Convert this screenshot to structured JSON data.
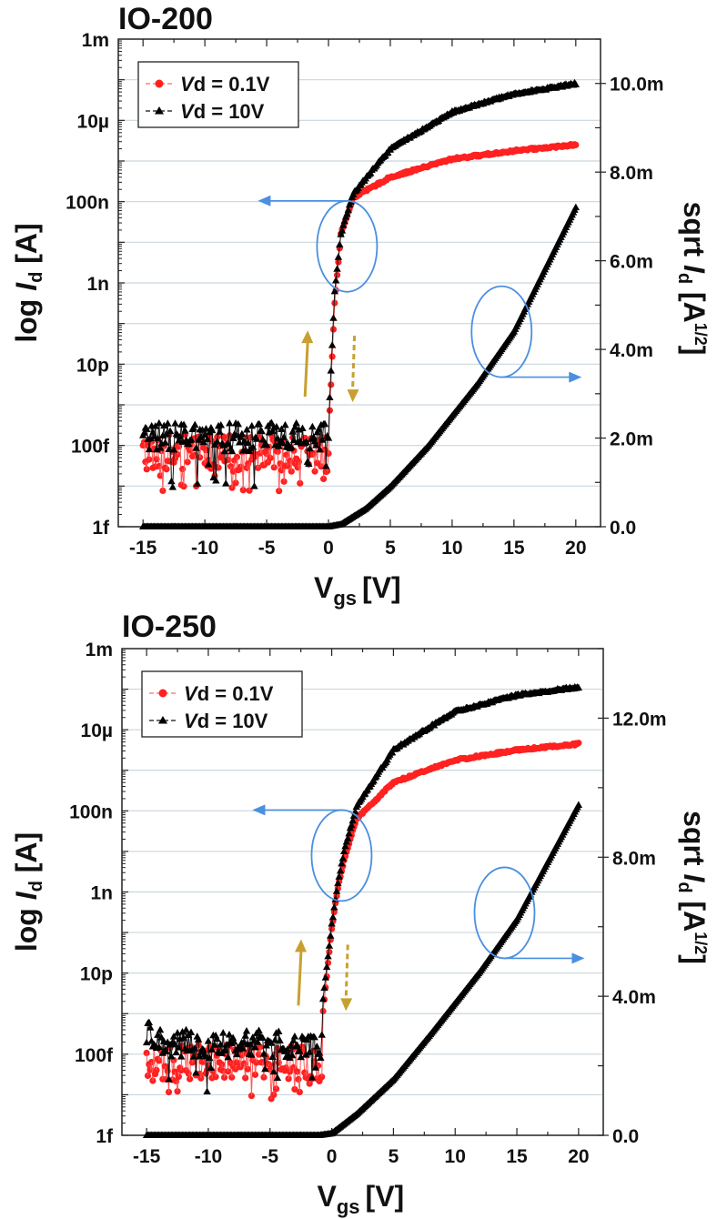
{
  "chart_data": [
    {
      "type": "scatter",
      "title": "IO-200",
      "xlabel": "V",
      "xlabel_sub": "gs",
      "xlabel_unit": "[V]",
      "ylabel_left": "log I_d [A]",
      "ylabel_left_parts": {
        "prefix": "log ",
        "italic": "I",
        "sub": "d",
        "suffix": " [A]"
      },
      "ylabel_right": "sqrt I_d [A^1/2]",
      "ylabel_right_parts": {
        "prefix": "sqrt ",
        "italic": "I",
        "sub": "d",
        "suffix": " [A",
        "sup": "1/2",
        "end": "]"
      },
      "xlim": [
        -17,
        22
      ],
      "xticks": [
        -15,
        -10,
        -5,
        0,
        5,
        10,
        15,
        20
      ],
      "xtick_labels": [
        "-15",
        "-10",
        "-5",
        "0",
        "5",
        "10",
        "15",
        "20"
      ],
      "ylim_left_log10": [
        -15,
        -3
      ],
      "yticks_left": [
        -3,
        -5,
        -7,
        -9,
        -11,
        -13,
        -15
      ],
      "ytick_labels_left": [
        "1m",
        "10µ",
        "100n",
        "1n",
        "10p",
        "100f",
        "1f"
      ],
      "ylim_right": [
        0,
        0.011
      ],
      "yticks_right": [
        0,
        0.002,
        0.004,
        0.006,
        0.008,
        0.01
      ],
      "ytick_labels_right": [
        "0.0",
        "2.0m",
        "4.0m",
        "6.0m",
        "8.0m",
        "10.0m"
      ],
      "grid": true,
      "legend_position": "top-left",
      "legend": [
        {
          "label_italic": "V",
          "label": "d = 0.1V",
          "color": "#ff2020",
          "marker": "circle"
        },
        {
          "label_italic": "V",
          "label": "d = 10V",
          "color": "#000000",
          "marker": "triangle"
        }
      ],
      "params": {
        "von": 0.3,
        "noise_vd01_log10": -13.1,
        "noise_vd10_log10": -12.8,
        "ion_vd01_log10": -5.8,
        "ion_vd10_log10": -4.35,
        "sqrt_end": 0.0072
      },
      "series": [
        {
          "name": "Vd = 0.1V (log Id)",
          "axis": "left",
          "color": "#ff2020",
          "description": "Off-current noise ~50f-200f for Vgs -15..0 V, steep rise at ~0.3 V, ~3e-7 A at 5 V, ~7e-6 A at 20 V",
          "x": [
            -15,
            -10,
            -5,
            0,
            0.5,
            1,
            2,
            5,
            10,
            15,
            20
          ],
          "log10_y": [
            -13.0,
            -13.1,
            -13.1,
            -12.8,
            -9.5,
            -7.8,
            -6.9,
            -6.4,
            -5.95,
            -5.75,
            -5.6
          ]
        },
        {
          "name": "Vd = 10V (log Id)",
          "axis": "left",
          "color": "#000000",
          "description": "Off-current noise ~100f-400f, steep rise at ~0.3 V, ~3e-6 A at 5 V, ~1.5e-4 A at 20 V",
          "x": [
            -15,
            -10,
            -5,
            0,
            0.5,
            1,
            2,
            5,
            10,
            15,
            20
          ],
          "log10_y": [
            -12.4,
            -12.7,
            -12.7,
            -12.5,
            -9.2,
            -7.8,
            -6.8,
            -5.7,
            -4.8,
            -4.35,
            -4.1
          ]
        },
        {
          "name": "Vd = 10V (sqrt Id)",
          "axis": "right",
          "color": "#000000",
          "x": [
            -15,
            -5,
            0,
            1,
            3,
            5,
            8,
            10,
            12,
            15,
            20
          ],
          "y": [
            0,
            0,
            0,
            5e-05,
            0.0004,
            0.0009,
            0.0018,
            0.0025,
            0.0032,
            0.0044,
            0.0072
          ]
        }
      ],
      "annotations": [
        {
          "type": "ellipse",
          "around_x": 1.5,
          "around_log10_y": -8.1,
          "arrow": "left",
          "color": "#4a8fe0",
          "meaning": "log-scale curves read on left axis"
        },
        {
          "type": "ellipse",
          "around_x": 14,
          "around_y": 0.0044,
          "arrow": "right",
          "color": "#4a8fe0",
          "meaning": "sqrt curve read on right axis"
        },
        {
          "type": "arrow",
          "direction": "up",
          "style": "solid",
          "color": "#c8a030",
          "meaning": "forward sweep"
        },
        {
          "type": "arrow",
          "direction": "down",
          "style": "dashed",
          "color": "#c8a030",
          "meaning": "reverse sweep"
        }
      ]
    },
    {
      "type": "scatter",
      "title": "IO-250",
      "xlabel": "V",
      "xlabel_sub": "gs",
      "xlabel_unit": "[V]",
      "ylabel_left": "log I_d [A]",
      "ylabel_left_parts": {
        "prefix": "log ",
        "italic": "I",
        "sub": "d",
        "suffix": " [A]"
      },
      "ylabel_right": "sqrt I_d [A^1/2]",
      "ylabel_right_parts": {
        "prefix": "sqrt ",
        "italic": "I",
        "sub": "d",
        "suffix": " [A",
        "sup": "1/2",
        "end": "]"
      },
      "xlim": [
        -17,
        22
      ],
      "xticks": [
        -15,
        -10,
        -5,
        0,
        5,
        10,
        15,
        20
      ],
      "xtick_labels": [
        "-15",
        "-10",
        "-5",
        "0",
        "5",
        "10",
        "15",
        "20"
      ],
      "ylim_left_log10": [
        -15,
        -3
      ],
      "yticks_left": [
        -3,
        -5,
        -7,
        -9,
        -11,
        -13,
        -15
      ],
      "ytick_labels_left": [
        "1m",
        "10µ",
        "100n",
        "1n",
        "10p",
        "100f",
        "1f"
      ],
      "ylim_right": [
        0,
        0.014
      ],
      "yticks_right": [
        0,
        0.004,
        0.008,
        0.012
      ],
      "ytick_labels_right": [
        "0.0",
        "4.0m",
        "8.0m",
        "12.0m"
      ],
      "grid": true,
      "legend_position": "top-left",
      "legend": [
        {
          "label_italic": "V",
          "label": "d = 0.1V",
          "color": "#ff2020",
          "marker": "circle"
        },
        {
          "label_italic": "V",
          "label": "d = 10V",
          "color": "#000000",
          "marker": "triangle"
        }
      ],
      "params": {
        "von": -0.5,
        "noise_vd01_log10": -13.1,
        "noise_vd10_log10": -12.75,
        "ion_vd01_log10": -5.6,
        "ion_vd10_log10": -4.2,
        "sqrt_end": 0.0095
      },
      "series": [
        {
          "name": "Vd = 0.1V (log Id)",
          "axis": "left",
          "color": "#ff2020",
          "description": "Off-current noise ~30f-200f for Vgs -15..-1 V, steep rise near -1..0 V, ~6e-7 A at 5 V, ~1.2e-5 A at 20 V",
          "x": [
            -15,
            -10,
            -5,
            -1,
            0,
            0.5,
            1,
            2,
            5,
            10,
            15,
            20
          ],
          "log10_y": [
            -13.0,
            -13.1,
            -13.1,
            -12.8,
            -9.9,
            -8.9,
            -8.2,
            -7.2,
            -6.3,
            -5.75,
            -5.5,
            -5.35
          ]
        },
        {
          "name": "Vd = 10V (log Id)",
          "axis": "left",
          "color": "#000000",
          "description": "Off-current noise ~100f-400f, steep rise near -1..0 V, ~5e-6 A at 5 V, ~2.5e-4 A at 20 V",
          "x": [
            -15,
            -10,
            -5,
            -1,
            0,
            0.5,
            1,
            2,
            5,
            10,
            15,
            20
          ],
          "log10_y": [
            -12.4,
            -12.6,
            -12.6,
            -12.4,
            -9.8,
            -8.8,
            -8.0,
            -6.9,
            -5.5,
            -4.55,
            -4.15,
            -3.95
          ]
        },
        {
          "name": "Vd = 10V (sqrt Id)",
          "axis": "right",
          "color": "#000000",
          "x": [
            -15,
            -5,
            -1,
            0,
            2,
            5,
            8,
            10,
            12,
            15,
            20
          ],
          "y": [
            0,
            0,
            0,
            5e-05,
            0.0006,
            0.0016,
            0.0029,
            0.0038,
            0.0047,
            0.0062,
            0.0095
          ]
        }
      ],
      "annotations": [
        {
          "type": "ellipse",
          "around_x": 0.8,
          "around_log10_y": -8.1,
          "arrow": "left",
          "color": "#4a8fe0",
          "meaning": "log-scale curves read on left axis"
        },
        {
          "type": "ellipse",
          "around_x": 14,
          "around_y": 0.0064,
          "arrow": "right",
          "color": "#4a8fe0",
          "meaning": "sqrt curve read on right axis"
        },
        {
          "type": "arrow",
          "direction": "up",
          "style": "solid",
          "color": "#c8a030",
          "meaning": "forward sweep"
        },
        {
          "type": "arrow",
          "direction": "down",
          "style": "dashed",
          "color": "#c8a030",
          "meaning": "reverse sweep"
        }
      ]
    }
  ]
}
